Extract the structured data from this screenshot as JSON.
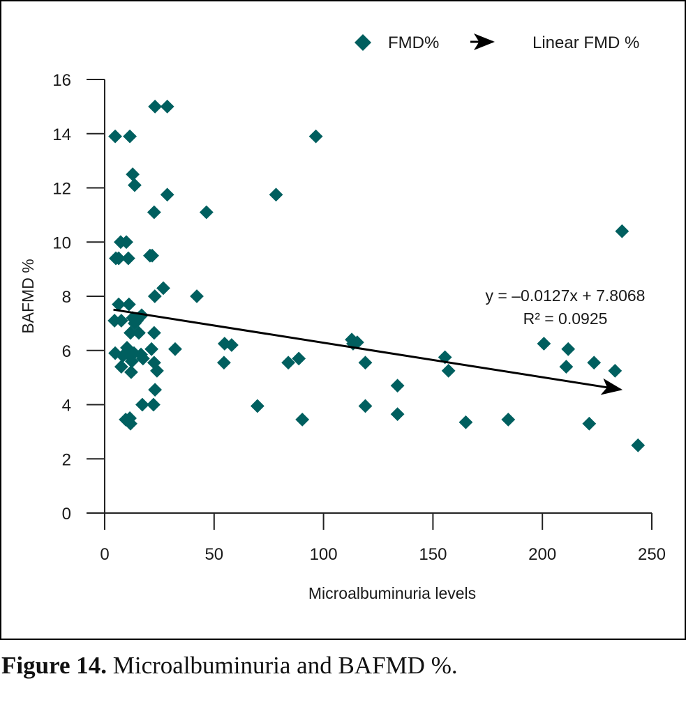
{
  "caption": {
    "label": "Figure 14.",
    "text": " Microalbuminuria and BAFMD %."
  },
  "chart_data": {
    "type": "scatter",
    "title": "",
    "xlabel": "Microalbuminuria levels",
    "ylabel": "BAFMD %",
    "xlim": [
      0,
      250
    ],
    "ylim": [
      0,
      16
    ],
    "xticks": [
      0,
      50,
      100,
      150,
      200,
      250
    ],
    "yticks": [
      0,
      2,
      4,
      6,
      8,
      10,
      12,
      14,
      16
    ],
    "grid": false,
    "legend": {
      "placement": "top-right",
      "entries": [
        {
          "label": "FMD%",
          "marker": "diamond",
          "color": "#005f5f"
        },
        {
          "label": "Linear FMD %",
          "marker": "arrow",
          "color": "#000000"
        }
      ]
    },
    "series": [
      {
        "name": "FMD%",
        "color": "#005f5f",
        "marker": "diamond",
        "points": [
          [
            23.0,
            15.0
          ],
          [
            28.6,
            15.0
          ],
          [
            4.8,
            13.9
          ],
          [
            11.5,
            13.9
          ],
          [
            96.5,
            13.9
          ],
          [
            12.8,
            12.5
          ],
          [
            13.7,
            12.1
          ],
          [
            28.6,
            11.75
          ],
          [
            78.3,
            11.75
          ],
          [
            22.6,
            11.1
          ],
          [
            46.5,
            11.1
          ],
          [
            236.4,
            10.4
          ],
          [
            7.3,
            10.0
          ],
          [
            9.9,
            10.0
          ],
          [
            5.1,
            9.4
          ],
          [
            6.4,
            9.4
          ],
          [
            10.8,
            9.4
          ],
          [
            20.7,
            9.5
          ],
          [
            21.7,
            9.5
          ],
          [
            26.8,
            8.3
          ],
          [
            22.9,
            8.0
          ],
          [
            42.1,
            8.0
          ],
          [
            6.4,
            7.7
          ],
          [
            11.1,
            7.7
          ],
          [
            4.5,
            7.1
          ],
          [
            7.6,
            7.1
          ],
          [
            12.8,
            7.2
          ],
          [
            13.7,
            7.0
          ],
          [
            14.7,
            7.1
          ],
          [
            15.6,
            7.2
          ],
          [
            16.9,
            7.3
          ],
          [
            11.8,
            6.65
          ],
          [
            15.6,
            6.65
          ],
          [
            22.6,
            6.65
          ],
          [
            4.8,
            5.9
          ],
          [
            8.3,
            5.8
          ],
          [
            10.2,
            6.1
          ],
          [
            11.5,
            5.8
          ],
          [
            12.4,
            5.6
          ],
          [
            13.4,
            5.9
          ],
          [
            16.6,
            5.85
          ],
          [
            17.5,
            5.7
          ],
          [
            21.4,
            6.05
          ],
          [
            7.6,
            5.4
          ],
          [
            12.1,
            5.2
          ],
          [
            22.6,
            5.55
          ],
          [
            23.9,
            5.25
          ],
          [
            23.0,
            4.55
          ],
          [
            17.2,
            4.0
          ],
          [
            22.3,
            4.0
          ],
          [
            9.6,
            3.45
          ],
          [
            11.5,
            3.5
          ],
          [
            11.8,
            3.3
          ],
          [
            32.2,
            6.05
          ],
          [
            54.8,
            6.25
          ],
          [
            58.0,
            6.2
          ],
          [
            54.5,
            5.55
          ],
          [
            69.8,
            3.95
          ],
          [
            83.9,
            5.55
          ],
          [
            88.7,
            5.7
          ],
          [
            90.3,
            3.45
          ],
          [
            112.9,
            6.4
          ],
          [
            113.5,
            6.25
          ],
          [
            115.4,
            6.3
          ],
          [
            119.1,
            5.55
          ],
          [
            119.1,
            3.95
          ],
          [
            133.8,
            4.7
          ],
          [
            133.8,
            3.65
          ],
          [
            155.5,
            5.75
          ],
          [
            157.1,
            5.25
          ],
          [
            165.0,
            3.35
          ],
          [
            184.4,
            3.45
          ],
          [
            200.7,
            6.25
          ],
          [
            211.8,
            6.05
          ],
          [
            210.9,
            5.4
          ],
          [
            221.4,
            3.3
          ],
          [
            223.6,
            5.55
          ],
          [
            233.2,
            5.25
          ],
          [
            243.7,
            2.5
          ]
        ]
      },
      {
        "name": "Linear FMD %",
        "type": "line",
        "color": "#000000",
        "arrowhead": true,
        "slope": -0.0127,
        "intercept": 7.8068,
        "x_range": [
          4,
          244
        ],
        "equation": "y = –0.0127x + 7.8068",
        "r_squared": "R² = 0.0925"
      }
    ]
  }
}
